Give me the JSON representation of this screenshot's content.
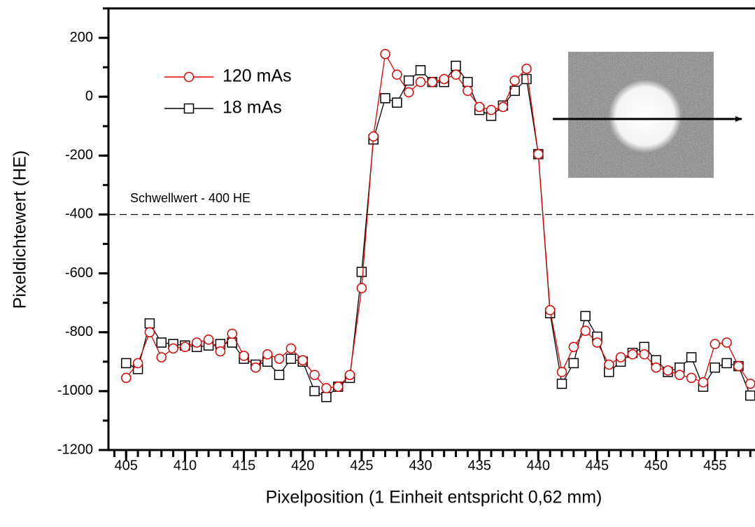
{
  "chart_data": {
    "type": "line",
    "x_label": "Pixelposition (1 Einheit entspricht 0,62 mm)",
    "y_label": "Pixeldichtewert (HE)",
    "x": [
      405,
      406,
      407,
      408,
      409,
      410,
      411,
      412,
      413,
      414,
      415,
      416,
      417,
      418,
      419,
      420,
      421,
      422,
      423,
      424,
      425,
      426,
      427,
      428,
      429,
      430,
      431,
      432,
      433,
      434,
      435,
      436,
      437,
      438,
      439,
      440,
      441,
      442,
      443,
      444,
      445,
      446,
      447,
      448,
      449,
      450,
      451,
      452,
      453,
      454,
      455,
      456,
      457,
      458
    ],
    "series": [
      {
        "name": "120 mAs",
        "color": "#e00000",
        "marker": "circle",
        "values": [
          -955,
          -905,
          -800,
          -885,
          -855,
          -850,
          -835,
          -825,
          -865,
          -805,
          -880,
          -920,
          -875,
          -890,
          -855,
          -895,
          -945,
          -990,
          -985,
          -945,
          -650,
          -135,
          145,
          75,
          15,
          50,
          50,
          60,
          75,
          20,
          -35,
          -45,
          -35,
          55,
          95,
          -195,
          -725,
          -935,
          -850,
          -795,
          -835,
          -910,
          -885,
          -875,
          -875,
          -920,
          -930,
          -945,
          -955,
          -970,
          -840,
          -835,
          -915,
          -975
        ]
      },
      {
        "name": "18 mAs",
        "color": "#000000",
        "marker": "square",
        "values": [
          -905,
          -925,
          -770,
          -835,
          -840,
          -845,
          -850,
          -845,
          -840,
          -835,
          -890,
          -910,
          -900,
          -945,
          -890,
          -900,
          -1000,
          -1020,
          -985,
          -955,
          -595,
          -145,
          -5,
          -20,
          55,
          90,
          50,
          50,
          105,
          50,
          -45,
          -65,
          -30,
          20,
          60,
          -195,
          -735,
          -975,
          -905,
          -745,
          -815,
          -935,
          -900,
          -870,
          -850,
          -895,
          -935,
          -920,
          -885,
          -985,
          -920,
          -905,
          -915,
          -1015
        ]
      }
    ],
    "threshold": -400,
    "threshold_label": "Schwellwert - 400 HE",
    "xlim": [
      403.5,
      458.4
    ],
    "ylim": [
      -1200,
      300
    ],
    "xticks": [
      405,
      410,
      415,
      420,
      425,
      430,
      435,
      440,
      445,
      450,
      455
    ],
    "yticks": [
      -1200,
      -1000,
      -800,
      -600,
      -400,
      -200,
      0,
      200
    ],
    "xminor": 1,
    "yminor": 100
  }
}
